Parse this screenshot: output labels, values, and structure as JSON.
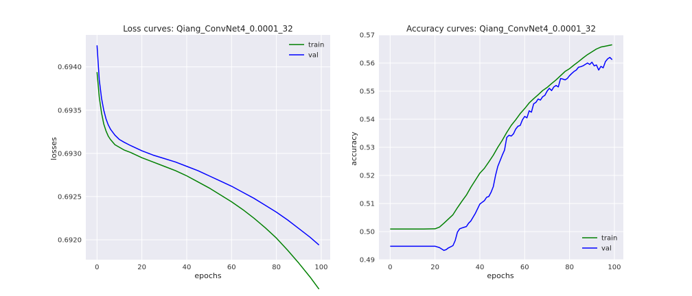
{
  "chart_data": [
    {
      "type": "line",
      "title": "Loss curves: Qiang_ConvNet4_0.0001_32",
      "xlabel": "epochs",
      "ylabel": "losses",
      "xlim": [
        -5,
        104
      ],
      "ylim": [
        0.69177,
        0.69437
      ],
      "xticks": [
        0,
        20,
        40,
        60,
        80,
        100
      ],
      "yticks": [
        0.692,
        0.6925,
        0.693,
        0.6935,
        0.694
      ],
      "ytick_labels": [
        "0.6920",
        "0.6925",
        "0.6930",
        "0.6935",
        "0.6940"
      ],
      "grid": true,
      "legend_position": "top-right",
      "series": [
        {
          "name": "train",
          "color": "#008000",
          "x": [
            0,
            1,
            2,
            3,
            4,
            5,
            6,
            8,
            10,
            12,
            15,
            20,
            25,
            30,
            35,
            40,
            45,
            50,
            55,
            60,
            65,
            70,
            75,
            80,
            85,
            90,
            95,
            99
          ],
          "y": [
            0.69394,
            0.69365,
            0.69347,
            0.69334,
            0.69326,
            0.6932,
            0.69316,
            0.6931,
            0.69307,
            0.69304,
            0.69301,
            0.69295,
            0.6929,
            0.69285,
            0.6928,
            0.69274,
            0.69267,
            0.6926,
            0.69252,
            0.69244,
            0.69235,
            0.69225,
            0.69214,
            0.69202,
            0.69188,
            0.69173,
            0.69157,
            0.69143
          ]
        },
        {
          "name": "val",
          "color": "#0000ff",
          "x": [
            0,
            1,
            2,
            3,
            4,
            5,
            6,
            8,
            10,
            12,
            15,
            20,
            25,
            30,
            35,
            40,
            45,
            50,
            55,
            60,
            65,
            70,
            75,
            80,
            85,
            90,
            95,
            99
          ],
          "y": [
            0.69425,
            0.69385,
            0.69364,
            0.6935,
            0.6934,
            0.69333,
            0.69328,
            0.69321,
            0.69316,
            0.69313,
            0.69309,
            0.69303,
            0.69298,
            0.69294,
            0.6929,
            0.69285,
            0.6928,
            0.69274,
            0.69268,
            0.69262,
            0.69255,
            0.69248,
            0.6924,
            0.69232,
            0.69223,
            0.69213,
            0.69203,
            0.69194
          ]
        }
      ]
    },
    {
      "type": "line",
      "title": "Accuracy curves: Qiang_ConvNet4_0.0001_32",
      "xlabel": "epochs",
      "ylabel": "accuracy",
      "xlim": [
        -5,
        104
      ],
      "ylim": [
        0.49,
        0.57
      ],
      "xticks": [
        0,
        20,
        40,
        60,
        80,
        100
      ],
      "yticks": [
        0.49,
        0.5,
        0.51,
        0.52,
        0.53,
        0.54,
        0.55,
        0.56,
        0.57
      ],
      "ytick_labels": [
        "0.49",
        "0.50",
        "0.51",
        "0.52",
        "0.53",
        "0.54",
        "0.55",
        "0.56",
        "0.57"
      ],
      "grid": true,
      "legend_position": "bottom-right",
      "series": [
        {
          "name": "train",
          "color": "#008000",
          "x": [
            0,
            5,
            10,
            15,
            20,
            22,
            24,
            26,
            28,
            30,
            32,
            34,
            36,
            38,
            40,
            42,
            44,
            46,
            48,
            50,
            52,
            54,
            56,
            58,
            60,
            62,
            64,
            66,
            68,
            70,
            72,
            74,
            76,
            78,
            80,
            82,
            84,
            86,
            88,
            90,
            92,
            94,
            96,
            99
          ],
          "y": [
            0.5009,
            0.5009,
            0.5009,
            0.5009,
            0.501,
            0.5016,
            0.503,
            0.5045,
            0.506,
            0.5085,
            0.5108,
            0.513,
            0.5158,
            0.5183,
            0.5208,
            0.5225,
            0.5248,
            0.5272,
            0.53,
            0.5325,
            0.5353,
            0.5378,
            0.5398,
            0.542,
            0.5438,
            0.5458,
            0.5473,
            0.5487,
            0.5502,
            0.5513,
            0.5527,
            0.554,
            0.5555,
            0.557,
            0.558,
            0.5593,
            0.5605,
            0.5618,
            0.563,
            0.564,
            0.565,
            0.5657,
            0.566,
            0.5665
          ]
        },
        {
          "name": "val",
          "color": "#0000ff",
          "x": [
            0,
            5,
            10,
            15,
            20,
            22,
            24,
            25,
            26,
            28,
            29,
            30,
            31,
            32,
            34,
            35,
            36,
            38,
            40,
            42,
            43,
            44,
            45,
            46,
            47,
            48,
            50,
            51,
            52,
            53,
            54,
            55,
            56,
            57,
            58,
            59,
            60,
            61,
            62,
            63,
            64,
            65,
            66,
            67,
            68,
            69,
            70,
            71,
            72,
            73,
            74,
            75,
            76,
            77,
            78,
            79,
            80,
            81,
            82,
            83,
            84,
            85,
            86,
            87,
            88,
            89,
            90,
            91,
            92,
            93,
            94,
            95,
            96,
            97,
            98,
            99
          ],
          "y": [
            0.4948,
            0.4948,
            0.4948,
            0.4948,
            0.4948,
            0.4943,
            0.4933,
            0.4936,
            0.4942,
            0.495,
            0.4968,
            0.4998,
            0.501,
            0.5013,
            0.5018,
            0.503,
            0.5038,
            0.5065,
            0.5098,
            0.511,
            0.5122,
            0.5125,
            0.514,
            0.516,
            0.52,
            0.5232,
            0.5272,
            0.529,
            0.5335,
            0.5343,
            0.534,
            0.5348,
            0.5365,
            0.5375,
            0.5378,
            0.5398,
            0.541,
            0.5405,
            0.543,
            0.5425,
            0.5455,
            0.546,
            0.5472,
            0.5468,
            0.548,
            0.5485,
            0.55,
            0.551,
            0.5502,
            0.5515,
            0.552,
            0.5515,
            0.5545,
            0.5543,
            0.554,
            0.5545,
            0.5555,
            0.5563,
            0.557,
            0.5575,
            0.5585,
            0.5587,
            0.559,
            0.5595,
            0.56,
            0.5595,
            0.5603,
            0.559,
            0.5593,
            0.5575,
            0.5588,
            0.5583,
            0.5605,
            0.5615,
            0.562,
            0.5612
          ]
        }
      ]
    }
  ]
}
